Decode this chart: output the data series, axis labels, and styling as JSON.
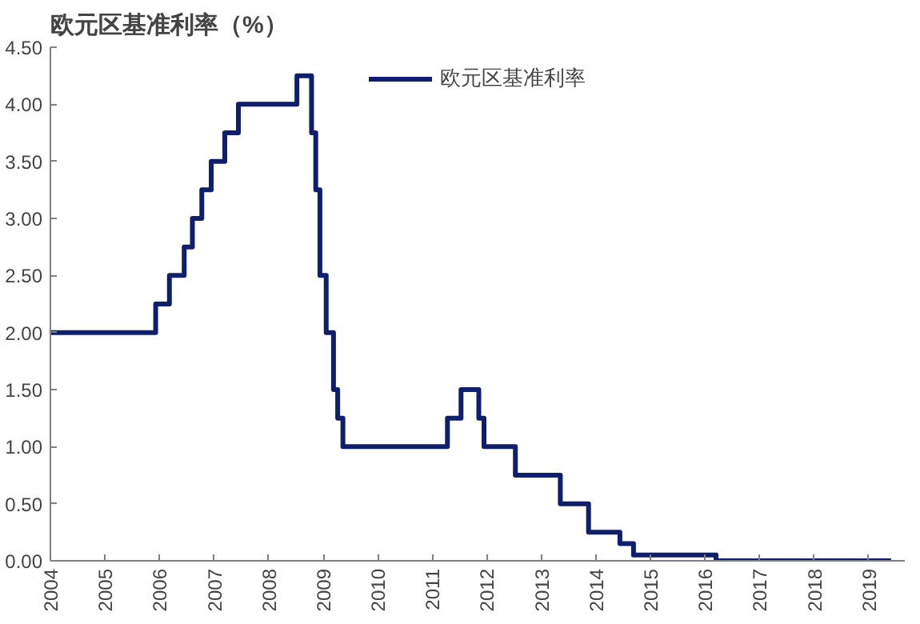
{
  "chart_data": {
    "type": "step",
    "title": "欧元区基准利率（%）",
    "x": [
      "2004-01-01",
      "2005-12-06",
      "2006-03-08",
      "2006-06-15",
      "2006-08-09",
      "2006-10-11",
      "2006-12-13",
      "2007-03-14",
      "2007-06-13",
      "2008-07-09",
      "2008-10-15",
      "2008-11-12",
      "2008-12-10",
      "2009-01-21",
      "2009-03-11",
      "2009-04-08",
      "2009-05-13",
      "2011-04-13",
      "2011-07-13",
      "2011-11-09",
      "2011-12-14",
      "2012-07-11",
      "2013-05-08",
      "2013-11-13",
      "2014-06-11",
      "2014-09-10",
      "2016-03-16",
      "2019-06-01"
    ],
    "series": [
      {
        "name": "欧元区基准利率",
        "color": "#0f1f6b",
        "values": [
          2.0,
          2.25,
          2.5,
          2.75,
          3.0,
          3.25,
          3.5,
          3.75,
          4.0,
          4.25,
          3.75,
          3.25,
          2.5,
          2.0,
          1.5,
          1.25,
          1.0,
          1.25,
          1.5,
          1.25,
          1.0,
          0.75,
          0.5,
          0.25,
          0.15,
          0.05,
          0.0,
          0.0
        ]
      }
    ],
    "xlim": [
      "2004-01-01",
      "2019-09-01"
    ],
    "xticks": [
      "2004",
      "2005",
      "2006",
      "2007",
      "2008",
      "2009",
      "2010",
      "2011",
      "2012",
      "2013",
      "2014",
      "2015",
      "2016",
      "2017",
      "2018",
      "2019"
    ],
    "ylim": [
      0,
      4.5
    ],
    "yticks": [
      {
        "value": 0,
        "label": "0.00"
      },
      {
        "value": 0.5,
        "label": "0.50"
      },
      {
        "value": 1,
        "label": "1.00"
      },
      {
        "value": 1.5,
        "label": "1.50"
      },
      {
        "value": 2,
        "label": "2.00"
      },
      {
        "value": 2.5,
        "label": "2.50"
      },
      {
        "value": 3,
        "label": "3.00"
      },
      {
        "value": 3.5,
        "label": "3.50"
      },
      {
        "value": 4,
        "label": "4.00"
      },
      {
        "value": 4.5,
        "label": "4.50"
      }
    ],
    "grid": false,
    "legend": "top"
  }
}
